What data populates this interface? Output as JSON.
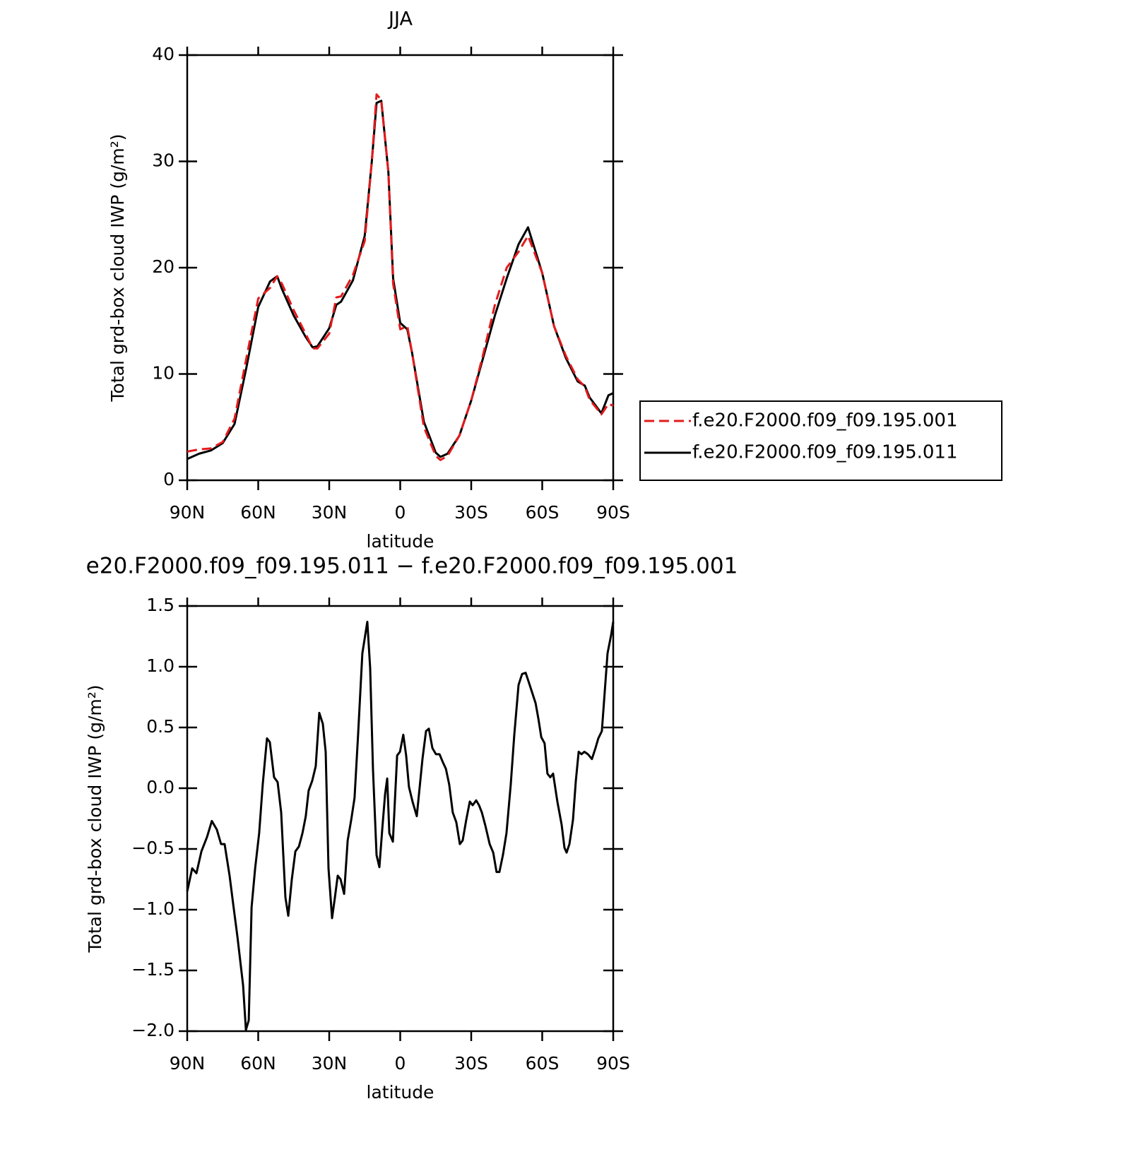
{
  "chart_data": [
    {
      "type": "line",
      "title": "JJA",
      "x_label": "latitude",
      "y_label": "Total grd-box cloud IWP (g/m²)",
      "x": [
        90,
        85,
        80,
        75,
        70,
        65,
        60,
        55,
        52,
        50,
        45,
        40,
        37,
        35,
        30,
        27,
        25,
        20,
        15,
        12,
        10,
        8,
        5,
        3,
        0,
        -3,
        -5,
        -10,
        -15,
        -17,
        -20,
        -25,
        -30,
        -35,
        -40,
        -45,
        -50,
        -54,
        -60,
        -65,
        -70,
        -75,
        -78,
        -80,
        -85,
        -88,
        -90
      ],
      "series": [
        {
          "name": "f.e20.F2000.f09_f09.195.001",
          "color": "#e31a1c",
          "linestyle": "dashed",
          "values": [
            2.7,
            2.9,
            3.0,
            3.6,
            5.8,
            11.5,
            17.1,
            18.1,
            19.2,
            18.5,
            16.0,
            13.8,
            12.4,
            12.4,
            13.8,
            17.2,
            17.3,
            19.3,
            22.5,
            30.0,
            36.3,
            35.8,
            29.0,
            18.5,
            14.2,
            14.5,
            12.0,
            5.0,
            2.3,
            1.9,
            2.3,
            4.2,
            7.5,
            11.8,
            16.5,
            20.0,
            21.5,
            23.0,
            19.5,
            14.5,
            11.7,
            9.5,
            8.8,
            7.6,
            6.2,
            7.2,
            7.0
          ]
        },
        {
          "name": "f.e20.F2000.f09_f09.195.011",
          "color": "#000000",
          "linestyle": "solid",
          "values": [
            2.0,
            2.5,
            2.8,
            3.5,
            5.3,
            10.6,
            16.3,
            18.7,
            19.2,
            18.0,
            15.5,
            13.5,
            12.5,
            12.6,
            14.3,
            16.5,
            16.8,
            18.8,
            23.0,
            30.0,
            35.5,
            35.7,
            29.0,
            19.0,
            14.8,
            14.2,
            12.0,
            5.5,
            2.6,
            2.2,
            2.5,
            4.2,
            7.5,
            11.5,
            15.5,
            19.0,
            22.2,
            23.8,
            19.5,
            14.5,
            11.5,
            9.3,
            8.9,
            7.8,
            6.3,
            8.0,
            8.2
          ]
        }
      ],
      "xlim": [
        90,
        -90
      ],
      "xticks": [
        {
          "value": 90,
          "label": "90N"
        },
        {
          "value": 60,
          "label": "60N"
        },
        {
          "value": 30,
          "label": "30N"
        },
        0,
        {
          "value": -30,
          "label": "30S"
        },
        {
          "value": -60,
          "label": "60S"
        },
        {
          "value": -90,
          "label": "90S"
        }
      ],
      "ylim": [
        0,
        40
      ],
      "yticks": [
        0,
        10,
        20,
        30,
        40
      ],
      "legend": "right"
    },
    {
      "type": "line",
      "title": "e20.F2000.f09_f09.195.011 − f.e20.F2000.f09_f09.195.001",
      "x_label": "latitude",
      "y_label": "Total grd-box cloud IWP (g/m²)",
      "x": [
        90,
        87.9,
        86.1,
        84,
        81.6,
        79.6,
        77.5,
        75.7,
        74.2,
        72.1,
        70.6,
        68.8,
        66.4,
        65.2,
        64,
        62.8,
        61.3,
        59.6,
        58.1,
        56.3,
        55.1,
        53.3,
        51.8,
        50.3,
        48.5,
        47.3,
        45.8,
        44.3,
        42.8,
        41.3,
        39.9,
        38.7,
        37.2,
        35.7,
        34.2,
        32.7,
        31.5,
        30.3,
        28.8,
        27.6,
        26.4,
        25.2,
        23.7,
        22.2,
        20.7,
        19.3,
        17.8,
        16,
        13.9,
        12.7,
        11.5,
        10,
        8.8,
        7.6,
        6.4,
        5.5,
        4.6,
        3.1,
        1.3,
        0.1,
        -1.3,
        -2.5,
        -3.7,
        -5.2,
        -7,
        -9.4,
        -10.9,
        -12.1,
        -13.6,
        -15.1,
        -16.6,
        -18.1,
        -19.3,
        -20.7,
        -22.2,
        -23.7,
        -25.2,
        -26.4,
        -27.9,
        -29.4,
        -30.6,
        -32.1,
        -33.3,
        -34.5,
        -36,
        -37.8,
        -39.3,
        -40.7,
        -41.9,
        -43.4,
        -44.9,
        -46.7,
        -48.2,
        -50,
        -51.5,
        -53,
        -54.2,
        -55.7,
        -57.2,
        -58.4,
        -59.6,
        -61,
        -62.2,
        -63.4,
        -64.6,
        -66.4,
        -68.2,
        -69.4,
        -70.3,
        -71.5,
        -73,
        -74.2,
        -75.4,
        -76.6,
        -77.8,
        -79.3,
        -81,
        -82.5,
        -83.7,
        -85.2,
        -86.4,
        -87.6,
        -89.1,
        -90
      ],
      "values": [
        -0.85,
        -0.66,
        -0.7,
        -0.52,
        -0.4,
        -0.27,
        -0.34,
        -0.46,
        -0.46,
        -0.72,
        -0.95,
        -1.22,
        -1.62,
        -1.99,
        -1.91,
        -0.98,
        -0.66,
        -0.37,
        0.03,
        0.41,
        0.38,
        0.09,
        0.05,
        -0.2,
        -0.9,
        -1.05,
        -0.75,
        -0.52,
        -0.48,
        -0.37,
        -0.23,
        -0.02,
        0.06,
        0.18,
        0.62,
        0.53,
        0.3,
        -0.66,
        -1.07,
        -0.9,
        -0.72,
        -0.75,
        -0.87,
        -0.43,
        -0.26,
        -0.08,
        0.44,
        1.11,
        1.37,
        0.99,
        0.15,
        -0.55,
        -0.65,
        -0.34,
        -0.05,
        0.08,
        -0.37,
        -0.44,
        0.27,
        0.3,
        0.44,
        0.27,
        0.01,
        -0.11,
        -0.23,
        0.24,
        0.47,
        0.49,
        0.33,
        0.28,
        0.28,
        0.21,
        0.16,
        0.03,
        -0.2,
        -0.28,
        -0.46,
        -0.43,
        -0.26,
        -0.11,
        -0.14,
        -0.1,
        -0.14,
        -0.2,
        -0.31,
        -0.46,
        -0.53,
        -0.69,
        -0.69,
        -0.55,
        -0.37,
        0.03,
        0.44,
        0.85,
        0.94,
        0.95,
        0.88,
        0.79,
        0.7,
        0.57,
        0.42,
        0.37,
        0.12,
        0.09,
        0.12,
        -0.11,
        -0.3,
        -0.49,
        -0.53,
        -0.46,
        -0.26,
        0.06,
        0.3,
        0.28,
        0.3,
        0.28,
        0.24,
        0.33,
        0.41,
        0.47,
        0.79,
        1.11,
        1.26,
        1.37
      ],
      "color": "#000000",
      "xlim": [
        90,
        -90
      ],
      "xticks": [
        {
          "value": 90,
          "label": "90N"
        },
        {
          "value": 60,
          "label": "60N"
        },
        {
          "value": 30,
          "label": "30N"
        },
        0,
        {
          "value": -30,
          "label": "30S"
        },
        {
          "value": -60,
          "label": "60S"
        },
        {
          "value": -90,
          "label": "90S"
        }
      ],
      "ylim": [
        -2,
        1.5
      ],
      "yticks": [
        {
          "value": -2,
          "label": "−2.0"
        },
        {
          "value": -1.5,
          "label": "−1.5"
        },
        {
          "value": -1,
          "label": "−1.0"
        },
        {
          "value": -0.5,
          "label": "−0.5"
        },
        {
          "value": 0,
          "label": "0.0"
        },
        {
          "value": 0.5,
          "label": "0.5"
        },
        {
          "value": 1,
          "label": "1.0"
        },
        1.5
      ]
    }
  ]
}
